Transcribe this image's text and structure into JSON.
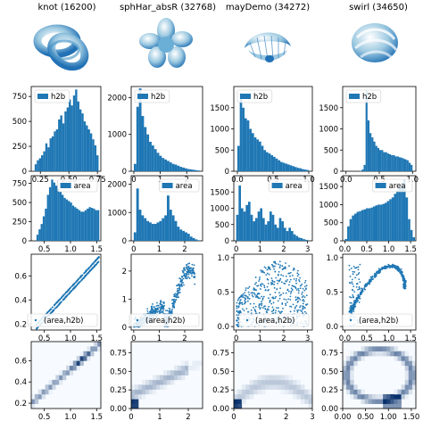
{
  "columns": [
    {
      "title": "knot (16200)",
      "shape": "knot"
    },
    {
      "title": "sphHar_absR (32768)",
      "shape": "sphhar"
    },
    {
      "title": "mayDemo (34272)",
      "shape": "maydemo"
    },
    {
      "title": "swirl (34650)",
      "shape": "swirl"
    }
  ],
  "colors": {
    "bar": "#1f77b4",
    "point": "#1f77b4",
    "axis": "#000000",
    "heat_low": "#f7fbff",
    "heat_high": "#08306b"
  },
  "chart_data": [
    {
      "type": "bar",
      "name": "h2b-histograms",
      "legend": "h2b",
      "legend_loc": "upper-left",
      "panels": [
        {
          "xlim": [
            0.17,
            0.78
          ],
          "ylim": [
            0,
            850
          ],
          "xticks": [
            0.25,
            0.5,
            0.75
          ],
          "xtick_labels": [
            "0.25",
            "0.50",
            "0.75"
          ],
          "yticks": [
            0,
            250,
            500,
            750
          ],
          "ytick_labels": [
            "0",
            "250",
            "500",
            "750"
          ],
          "bin_range": [
            0.2,
            0.76
          ],
          "values": [
            70,
            110,
            130,
            160,
            200,
            280,
            240,
            330,
            350,
            400,
            420,
            520,
            560,
            480,
            600,
            640,
            720,
            660,
            760,
            820,
            700,
            620,
            580,
            500,
            460,
            420,
            380,
            320,
            260,
            160
          ]
        },
        {
          "xlim": [
            -0.1,
            2.6
          ],
          "ylim": [
            0,
            2300
          ],
          "xticks": [
            0,
            1,
            2
          ],
          "xtick_labels": [
            "0",
            "1",
            "2"
          ],
          "yticks": [
            0,
            1000,
            2000
          ],
          "ytick_labels": [
            "0",
            "1000",
            "2000"
          ],
          "bin_range": [
            0.0,
            2.5
          ],
          "values": [
            200,
            1750,
            2250,
            1500,
            1200,
            1000,
            800,
            700,
            600,
            500,
            420,
            360,
            320,
            280,
            240,
            200,
            180,
            150,
            120,
            100,
            80,
            60,
            50,
            40,
            30,
            20
          ]
        },
        {
          "xlim": [
            -0.05,
            1.05
          ],
          "ylim": [
            0,
            2000
          ],
          "xticks": [
            0.0,
            0.5,
            1.0
          ],
          "xtick_labels": [
            "0.0",
            "0.5",
            "1.0"
          ],
          "yticks": [
            0,
            500,
            1000,
            1500
          ],
          "ytick_labels": [
            "0",
            "500",
            "1000",
            "1500"
          ],
          "bin_range": [
            0.0,
            1.0
          ],
          "values": [
            600,
            1850,
            1500,
            1250,
            1200,
            1000,
            900,
            800,
            750,
            700,
            600,
            500,
            450,
            420,
            380,
            340,
            300,
            260,
            220,
            200,
            180,
            160,
            140,
            120,
            100,
            80,
            70,
            50,
            40,
            30
          ]
        },
        {
          "xlim": [
            -0.05,
            1.05
          ],
          "ylim": [
            0,
            2000
          ],
          "xticks": [
            0.0,
            0.5,
            1.0
          ],
          "xtick_labels": [
            "0.0",
            "0.5",
            "1.0"
          ],
          "yticks": [
            0,
            500,
            1000,
            1500
          ],
          "ytick_labels": [
            "0",
            "500",
            "1000",
            "1500"
          ],
          "bin_range": [
            0.0,
            1.0
          ],
          "values": [
            0,
            0,
            0,
            0,
            0,
            0,
            0,
            10,
            40,
            150,
            1900,
            1200,
            900,
            800,
            700,
            600,
            550,
            500,
            500,
            450,
            450,
            420,
            400,
            380,
            380,
            350,
            350,
            330,
            320,
            300,
            280,
            260,
            200,
            150
          ]
        }
      ]
    },
    {
      "type": "bar",
      "name": "area-histograms",
      "legend": "area",
      "legend_loc": "top-right",
      "panels": [
        {
          "xlim": [
            0.25,
            1.58
          ],
          "ylim": [
            0,
            850
          ],
          "xticks": [
            0.5,
            1.0,
            1.5
          ],
          "xtick_labels": [
            "0.5",
            "1.0",
            "1.5"
          ],
          "yticks": [
            0,
            250,
            500,
            750
          ],
          "ytick_labels": [
            "0",
            "250",
            "500",
            "750"
          ],
          "bin_range": [
            0.35,
            1.55
          ],
          "values": [
            80,
            150,
            220,
            320,
            420,
            600,
            700,
            800,
            760,
            720,
            680,
            640,
            600,
            560,
            540,
            520,
            500,
            460,
            440,
            420,
            400,
            380,
            380,
            400,
            420,
            440,
            430,
            420,
            400,
            400
          ]
        },
        {
          "xlim": [
            -0.1,
            2.7
          ],
          "ylim": [
            0,
            2300
          ],
          "xticks": [
            0,
            1,
            2
          ],
          "xtick_labels": [
            "0",
            "1",
            "2"
          ],
          "yticks": [
            0,
            1000,
            2000
          ],
          "ytick_labels": [
            "0",
            "1000",
            "2000"
          ],
          "bin_range": [
            0.0,
            2.6
          ],
          "values": [
            300,
            1850,
            1100,
            900,
            800,
            700,
            650,
            600,
            600,
            650,
            700,
            800,
            900,
            1600,
            1100,
            900,
            700,
            500,
            400,
            350,
            300,
            250,
            150,
            100,
            50,
            20
          ]
        },
        {
          "xlim": [
            -0.1,
            3.2
          ],
          "ylim": [
            0,
            2000
          ],
          "xticks": [
            0,
            1,
            2,
            3
          ],
          "xtick_labels": [
            "0",
            "1",
            "2",
            "3"
          ],
          "yticks": [
            0,
            500,
            1000,
            1500
          ],
          "ytick_labels": [
            "0",
            "500",
            "1000",
            "1500"
          ],
          "bin_range": [
            0.0,
            3.0
          ],
          "values": [
            800,
            1700,
            1000,
            900,
            1100,
            1200,
            800,
            600,
            700,
            900,
            1000,
            700,
            500,
            600,
            900,
            800,
            500,
            400,
            700,
            600,
            400,
            300,
            400,
            300,
            200,
            150,
            100,
            80,
            50,
            30
          ]
        },
        {
          "xlim": [
            -0.05,
            1.62
          ],
          "ylim": [
            0,
            1800
          ],
          "xticks": [
            0.0,
            0.5,
            1.0,
            1.5
          ],
          "xtick_labels": [
            "0.0",
            "0.5",
            "1.0",
            "1.5"
          ],
          "yticks": [
            0,
            500,
            1000,
            1500
          ],
          "ytick_labels": [
            "0",
            "500",
            "1000",
            "1500"
          ],
          "bin_range": [
            0.0,
            1.6
          ],
          "values": [
            50,
            400,
            600,
            700,
            750,
            800,
            820,
            850,
            870,
            900,
            900,
            920,
            950,
            980,
            1000,
            1000,
            1020,
            1050,
            1100,
            1150,
            1200,
            1300,
            1400,
            1500,
            1600,
            1700,
            1200,
            600,
            300,
            100
          ]
        }
      ]
    },
    {
      "type": "scatter",
      "name": "area-vs-h2b",
      "legend": "(area,h2b)",
      "legend_loc": "lower-right",
      "panels": [
        {
          "xlim": [
            0.25,
            1.58
          ],
          "ylim": [
            0.15,
            0.78
          ],
          "xticks": [
            0.5,
            1.0,
            1.5
          ],
          "xtick_labels": [
            "0.5",
            "1.0",
            "1.5"
          ],
          "yticks": [
            0.2,
            0.4,
            0.6
          ],
          "ytick_labels": [
            "0.2",
            "0.4",
            "0.6"
          ],
          "pattern": "knot"
        },
        {
          "xlim": [
            -0.1,
            2.7
          ],
          "ylim": [
            -0.1,
            2.6
          ],
          "xticks": [
            0,
            1,
            2
          ],
          "xtick_labels": [
            "0",
            "1",
            "2"
          ],
          "yticks": [
            0,
            1,
            2
          ],
          "ytick_labels": [
            "0",
            "1",
            "2"
          ],
          "pattern": "sphhar"
        },
        {
          "xlim": [
            -0.1,
            3.2
          ],
          "ylim": [
            -0.05,
            1.05
          ],
          "xticks": [
            0,
            1,
            2,
            3
          ],
          "xtick_labels": [
            "0",
            "1",
            "2",
            "3"
          ],
          "yticks": [
            0.0,
            0.5,
            1.0
          ],
          "ytick_labels": [
            "0.0",
            "0.5",
            "1.0"
          ],
          "pattern": "maydemo"
        },
        {
          "xlim": [
            -0.05,
            1.62
          ],
          "ylim": [
            -0.05,
            1.05
          ],
          "xticks": [
            0.0,
            0.5,
            1.0,
            1.5
          ],
          "xtick_labels": [
            "0.0",
            "0.5",
            "1.0",
            "1.5"
          ],
          "yticks": [
            0.0,
            0.5,
            1.0
          ],
          "ytick_labels": [
            "0.0",
            "0.5",
            "1.0"
          ],
          "pattern": "swirl"
        }
      ]
    },
    {
      "type": "heatmap",
      "name": "area-vs-h2b-density",
      "panels": [
        {
          "xlim": [
            0.25,
            1.58
          ],
          "ylim": [
            0.15,
            0.78
          ],
          "xticks": [
            0.5,
            1.0,
            1.5
          ],
          "xtick_labels": [
            "0.5",
            "1.0",
            "1.5"
          ],
          "yticks": [
            0.2,
            0.4,
            0.6
          ],
          "ytick_labels": [
            "0.2",
            "0.4",
            "0.6"
          ],
          "pattern": "knot"
        },
        {
          "xlim": [
            0,
            2.5
          ],
          "ylim": [
            0,
            0.9
          ],
          "xticks": [
            0,
            1,
            2
          ],
          "xtick_labels": [
            "0",
            "1",
            "2"
          ],
          "yticks": [
            0.0,
            0.25,
            0.5,
            0.75
          ],
          "ytick_labels": [
            "0.00",
            "0.25",
            "0.50",
            "0.75"
          ],
          "pattern": "sphhar"
        },
        {
          "xlim": [
            0,
            3
          ],
          "ylim": [
            0,
            0.9
          ],
          "xticks": [
            0,
            1,
            2,
            3
          ],
          "xtick_labels": [
            "0",
            "1",
            "2",
            "3"
          ],
          "yticks": [
            0.0,
            0.25,
            0.5,
            0.75
          ],
          "ytick_labels": [
            "0.00",
            "0.25",
            "0.50",
            "0.75"
          ],
          "pattern": "maydemo"
        },
        {
          "xlim": [
            0,
            1.6
          ],
          "ylim": [
            0,
            0.9
          ],
          "xticks": [
            0.0,
            0.5,
            1.0,
            1.5
          ],
          "xtick_labels": [
            "0.00",
            "0.50",
            "1.00",
            "1.50"
          ],
          "yticks": [
            0.0,
            0.25,
            0.5,
            0.75
          ],
          "ytick_labels": [
            "0.00",
            "0.25",
            "0.50",
            "0.75"
          ],
          "pattern": "swirl"
        }
      ]
    }
  ]
}
